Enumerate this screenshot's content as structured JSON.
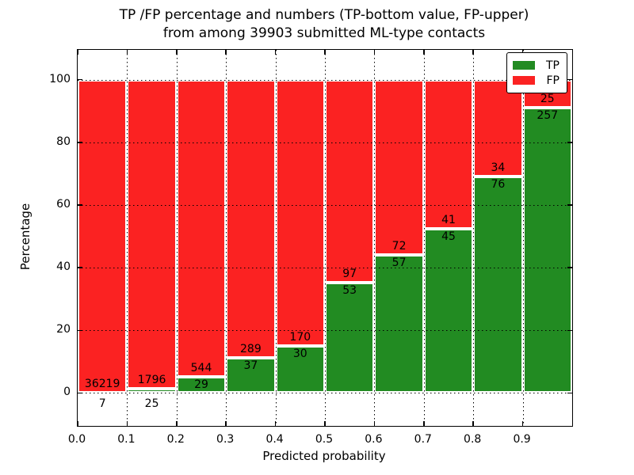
{
  "figure": {
    "title_line1": "TP /FP percentage and numbers (TP-bottom value, FP-upper)",
    "title_line2": "from among 39903 submitted ML-type contacts",
    "background_color": "#ffffff"
  },
  "chart_data": {
    "type": "bar",
    "subtype": "stacked-percentage",
    "title": "TP /FP percentage and numbers (TP-bottom value, FP-upper) from among 39903 submitted ML-type contacts",
    "total_contacts": 39903,
    "xlabel": "Predicted probability",
    "ylabel": "Percentage",
    "categories": [
      "0.0-0.1",
      "0.1-0.2",
      "0.2-0.3",
      "0.3-0.4",
      "0.4-0.5",
      "0.5-0.6",
      "0.6-0.7",
      "0.7-0.8",
      "0.8-0.9",
      "0.9-1.0"
    ],
    "bin_width": 0.1,
    "series": [
      {
        "name": "TP",
        "color": "#228b22",
        "values": [
          7,
          25,
          29,
          37,
          30,
          53,
          57,
          45,
          76,
          257
        ]
      },
      {
        "name": "FP",
        "color": "#fb2222",
        "values": [
          36219,
          1796,
          544,
          289,
          170,
          97,
          72,
          41,
          34,
          25
        ]
      }
    ],
    "bar_edge_color": "#ffffff",
    "xticks": [
      "0.0",
      "0.1",
      "0.2",
      "0.3",
      "0.4",
      "0.5",
      "0.6",
      "0.7",
      "0.8",
      "0.9"
    ],
    "yticks": [
      0,
      20,
      40,
      60,
      80,
      100
    ],
    "xlim": [
      0.0,
      1.0
    ],
    "ylim": [
      -10.5,
      109.5
    ],
    "grid": "dotted-black-both-axes",
    "legend": {
      "position": "upper right",
      "entries": [
        "TP",
        "FP"
      ]
    }
  }
}
